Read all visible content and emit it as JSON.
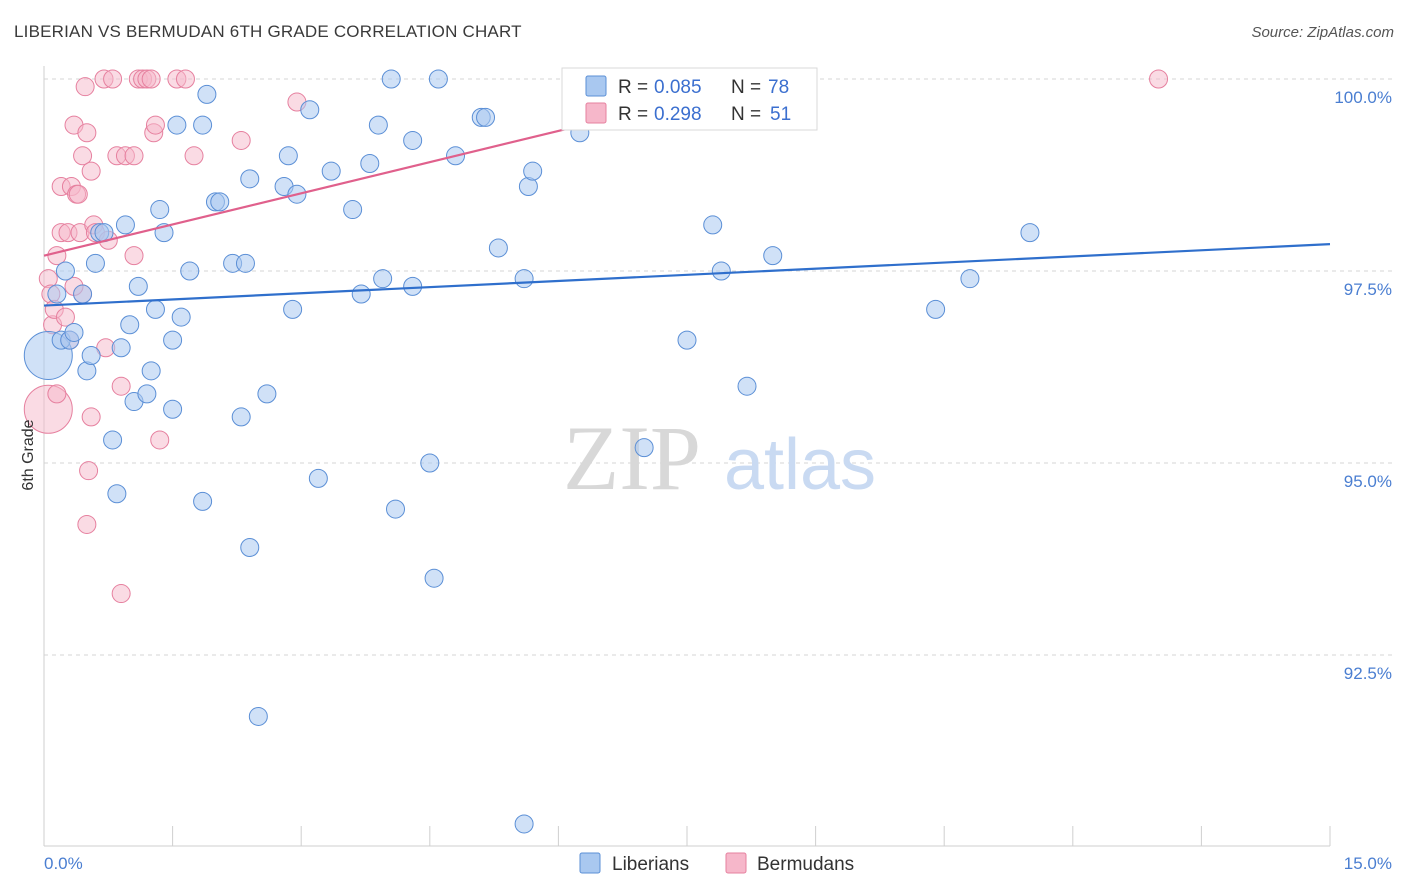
{
  "title": "LIBERIAN VS BERMUDAN 6TH GRADE CORRELATION CHART",
  "source": "Source: ZipAtlas.com",
  "watermark": {
    "zip": "ZIP",
    "atlas": "atlas"
  },
  "colors": {
    "blue_fill": "#a9c8f0",
    "blue_stroke": "#5b8fd6",
    "blue_line": "#2f6fcc",
    "pink_fill": "#f6b7ca",
    "pink_stroke": "#e6809f",
    "pink_line": "#e0608c",
    "tick_label": "#4a7ed1",
    "grid": "#d6d6d6"
  },
  "legend_top": {
    "rows": [
      {
        "r_label": "R =",
        "r_value": "0.085",
        "n_label": "N =",
        "n_value": "78"
      },
      {
        "r_label": "R =",
        "r_value": "0.298",
        "n_label": "N =",
        "n_value": "51"
      }
    ]
  },
  "legend_bottom": [
    "Liberians",
    "Bermudans"
  ],
  "chart_data": {
    "type": "scatter",
    "title": "LIBERIAN VS BERMUDAN 6TH GRADE CORRELATION CHART",
    "xlabel": "",
    "ylabel": "6th Grade",
    "xlim": [
      0,
      15
    ],
    "ylim": [
      90.2,
      100.45
    ],
    "x_tick_labels": [
      "0.0%",
      "15.0%"
    ],
    "y_ticks": [
      92.5,
      95.0,
      97.5,
      100.0
    ],
    "y_tick_labels": [
      "92.5%",
      "95.0%",
      "97.5%",
      "100.0%"
    ],
    "grid": "horizontal dashed",
    "series": [
      {
        "name": "Liberians",
        "trend": {
          "x": [
            0,
            15
          ],
          "y": [
            97.05,
            97.85
          ]
        },
        "points": [
          {
            "x": 0.05,
            "y": 96.4,
            "big": true
          },
          {
            "x": 0.15,
            "y": 97.2
          },
          {
            "x": 0.2,
            "y": 96.6
          },
          {
            "x": 0.25,
            "y": 97.5
          },
          {
            "x": 0.3,
            "y": 96.6
          },
          {
            "x": 0.35,
            "y": 96.7
          },
          {
            "x": 0.45,
            "y": 97.2
          },
          {
            "x": 0.5,
            "y": 96.2
          },
          {
            "x": 0.55,
            "y": 96.4
          },
          {
            "x": 0.6,
            "y": 97.6
          },
          {
            "x": 0.65,
            "y": 98.0
          },
          {
            "x": 0.7,
            "y": 98.0
          },
          {
            "x": 0.8,
            "y": 95.3
          },
          {
            "x": 0.85,
            "y": 94.6
          },
          {
            "x": 0.9,
            "y": 96.5
          },
          {
            "x": 0.95,
            "y": 98.1
          },
          {
            "x": 1.0,
            "y": 96.8
          },
          {
            "x": 1.05,
            "y": 95.8
          },
          {
            "x": 1.1,
            "y": 97.3
          },
          {
            "x": 1.2,
            "y": 95.9
          },
          {
            "x": 1.25,
            "y": 96.2
          },
          {
            "x": 1.3,
            "y": 97.0
          },
          {
            "x": 1.35,
            "y": 98.3
          },
          {
            "x": 1.4,
            "y": 98.0
          },
          {
            "x": 1.5,
            "y": 96.6
          },
          {
            "x": 1.5,
            "y": 95.7
          },
          {
            "x": 1.55,
            "y": 99.4
          },
          {
            "x": 1.6,
            "y": 96.9
          },
          {
            "x": 1.7,
            "y": 97.5
          },
          {
            "x": 1.85,
            "y": 94.5
          },
          {
            "x": 1.85,
            "y": 99.4
          },
          {
            "x": 1.9,
            "y": 99.8
          },
          {
            "x": 2.0,
            "y": 98.4
          },
          {
            "x": 2.05,
            "y": 98.4
          },
          {
            "x": 2.2,
            "y": 97.6
          },
          {
            "x": 2.3,
            "y": 95.6
          },
          {
            "x": 2.4,
            "y": 98.7
          },
          {
            "x": 2.4,
            "y": 93.9
          },
          {
            "x": 2.5,
            "y": 91.7
          },
          {
            "x": 2.6,
            "y": 95.9
          },
          {
            "x": 2.8,
            "y": 98.6
          },
          {
            "x": 2.85,
            "y": 99.0
          },
          {
            "x": 2.9,
            "y": 97.0
          },
          {
            "x": 2.95,
            "y": 98.5
          },
          {
            "x": 3.1,
            "y": 99.6
          },
          {
            "x": 3.2,
            "y": 94.8
          },
          {
            "x": 3.35,
            "y": 98.8
          },
          {
            "x": 3.6,
            "y": 98.3
          },
          {
            "x": 3.7,
            "y": 97.2
          },
          {
            "x": 3.8,
            "y": 98.9
          },
          {
            "x": 3.9,
            "y": 99.4
          },
          {
            "x": 3.95,
            "y": 97.4
          },
          {
            "x": 4.05,
            "y": 100.0
          },
          {
            "x": 4.1,
            "y": 94.4
          },
          {
            "x": 4.3,
            "y": 97.3
          },
          {
            "x": 4.3,
            "y": 99.2
          },
          {
            "x": 4.5,
            "y": 95.0
          },
          {
            "x": 4.55,
            "y": 93.5
          },
          {
            "x": 4.6,
            "y": 100.0
          },
          {
            "x": 4.8,
            "y": 99.0
          },
          {
            "x": 5.1,
            "y": 99.5
          },
          {
            "x": 5.15,
            "y": 99.5
          },
          {
            "x": 5.3,
            "y": 97.8
          },
          {
            "x": 5.6,
            "y": 97.4
          },
          {
            "x": 5.65,
            "y": 98.6
          },
          {
            "x": 5.7,
            "y": 98.8
          },
          {
            "x": 6.25,
            "y": 99.3
          },
          {
            "x": 7.0,
            "y": 95.2
          },
          {
            "x": 7.5,
            "y": 96.6
          },
          {
            "x": 7.8,
            "y": 98.1
          },
          {
            "x": 7.9,
            "y": 97.5
          },
          {
            "x": 8.2,
            "y": 96.0
          },
          {
            "x": 8.5,
            "y": 97.7
          },
          {
            "x": 10.4,
            "y": 97.0
          },
          {
            "x": 10.8,
            "y": 97.4
          },
          {
            "x": 11.5,
            "y": 98.0
          },
          {
            "x": 5.6,
            "y": 90.3
          },
          {
            "x": 2.35,
            "y": 97.6
          }
        ]
      },
      {
        "name": "Bermudans",
        "trend": {
          "x": [
            0,
            8.5
          ],
          "y": [
            97.7,
            100.0
          ]
        },
        "points": [
          {
            "x": 0.05,
            "y": 95.7,
            "big": true
          },
          {
            "x": 0.05,
            "y": 97.4
          },
          {
            "x": 0.08,
            "y": 97.2
          },
          {
            "x": 0.1,
            "y": 96.8
          },
          {
            "x": 0.12,
            "y": 97.0
          },
          {
            "x": 0.15,
            "y": 97.7
          },
          {
            "x": 0.15,
            "y": 95.9
          },
          {
            "x": 0.2,
            "y": 98.0
          },
          {
            "x": 0.2,
            "y": 98.6
          },
          {
            "x": 0.25,
            "y": 96.9
          },
          {
            "x": 0.28,
            "y": 98.0
          },
          {
            "x": 0.3,
            "y": 96.6
          },
          {
            "x": 0.32,
            "y": 98.6
          },
          {
            "x": 0.35,
            "y": 99.4
          },
          {
            "x": 0.38,
            "y": 98.5
          },
          {
            "x": 0.4,
            "y": 98.5
          },
          {
            "x": 0.42,
            "y": 98.0
          },
          {
            "x": 0.45,
            "y": 99.0
          },
          {
            "x": 0.45,
            "y": 97.2
          },
          {
            "x": 0.48,
            "y": 99.9
          },
          {
            "x": 0.5,
            "y": 99.3
          },
          {
            "x": 0.5,
            "y": 94.2
          },
          {
            "x": 0.52,
            "y": 94.9
          },
          {
            "x": 0.55,
            "y": 95.6
          },
          {
            "x": 0.55,
            "y": 98.8
          },
          {
            "x": 0.58,
            "y": 98.1
          },
          {
            "x": 0.6,
            "y": 98.0
          },
          {
            "x": 0.7,
            "y": 100.0
          },
          {
            "x": 0.72,
            "y": 96.5
          },
          {
            "x": 0.75,
            "y": 97.9
          },
          {
            "x": 0.8,
            "y": 100.0
          },
          {
            "x": 0.85,
            "y": 99.0
          },
          {
            "x": 0.9,
            "y": 96.0
          },
          {
            "x": 0.9,
            "y": 93.3
          },
          {
            "x": 0.95,
            "y": 99.0
          },
          {
            "x": 1.05,
            "y": 99.0
          },
          {
            "x": 1.05,
            "y": 97.7
          },
          {
            "x": 1.1,
            "y": 100.0
          },
          {
            "x": 1.15,
            "y": 100.0
          },
          {
            "x": 1.2,
            "y": 100.0
          },
          {
            "x": 1.25,
            "y": 100.0
          },
          {
            "x": 1.28,
            "y": 99.3
          },
          {
            "x": 1.3,
            "y": 99.4
          },
          {
            "x": 1.35,
            "y": 95.3
          },
          {
            "x": 1.55,
            "y": 100.0
          },
          {
            "x": 1.65,
            "y": 100.0
          },
          {
            "x": 1.75,
            "y": 99.0
          },
          {
            "x": 2.3,
            "y": 99.2
          },
          {
            "x": 2.95,
            "y": 99.7
          },
          {
            "x": 13.0,
            "y": 100.0
          },
          {
            "x": 0.35,
            "y": 97.3
          }
        ]
      }
    ]
  }
}
